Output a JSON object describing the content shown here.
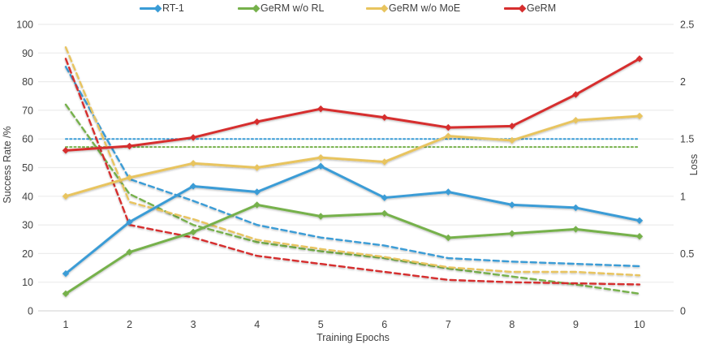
{
  "chart_data": {
    "type": "line",
    "xlabel": "Training Epochs",
    "x": [
      1,
      2,
      3,
      4,
      5,
      6,
      7,
      8,
      9,
      10
    ],
    "left_axis": {
      "label": "Success Rate /%",
      "range": [
        0,
        100
      ],
      "ticks": [
        0,
        10,
        20,
        30,
        40,
        50,
        60,
        70,
        80,
        90,
        100
      ]
    },
    "right_axis": {
      "label": "Loss",
      "range": [
        0,
        2.5
      ],
      "ticks": [
        0,
        0.5,
        1,
        1.5,
        2,
        2.5
      ]
    },
    "grid": "horizontal",
    "legend": {
      "position": "top",
      "items": [
        {
          "label": "RT-1",
          "color": "#3A9CD6"
        },
        {
          "label": "GeRM w/o RL",
          "color": "#76B14B"
        },
        {
          "label": "GeRM w/o MoE",
          "color": "#E8C45E"
        },
        {
          "label": "GeRM",
          "color": "#D62E2E"
        }
      ]
    },
    "series": [
      {
        "name": "RT-1 success rate",
        "axis": "left",
        "style": "solid",
        "color": "#3A9CD6",
        "values": [
          13,
          31,
          43.5,
          41.5,
          50.5,
          39.5,
          41.5,
          37,
          36,
          31.5
        ]
      },
      {
        "name": "GeRM w/o RL success rate",
        "axis": "left",
        "style": "solid",
        "color": "#76B14B",
        "values": [
          6,
          20.5,
          27.5,
          37,
          33,
          34,
          25.5,
          27,
          28.5,
          26
        ]
      },
      {
        "name": "GeRM w/o MoE success rate",
        "axis": "left",
        "style": "solid",
        "color": "#E8C45E",
        "values": [
          40,
          46.5,
          51.5,
          50,
          53.5,
          52,
          61,
          59.5,
          66.5,
          68
        ]
      },
      {
        "name": "GeRM success rate",
        "axis": "left",
        "style": "solid",
        "color": "#D62E2E",
        "values": [
          56,
          57.5,
          60.5,
          66,
          70.5,
          67.5,
          64,
          64.5,
          75.5,
          88
        ]
      },
      {
        "name": "RT-1 loss",
        "axis": "right",
        "style": "dashed",
        "color": "#3A9CD6",
        "values": [
          2.13,
          1.15,
          0.96,
          0.75,
          0.64,
          0.57,
          0.46,
          0.43,
          0.41,
          0.39
        ]
      },
      {
        "name": "GeRM w/o RL loss",
        "axis": "right",
        "style": "dashed",
        "color": "#76B14B",
        "values": [
          1.8,
          1.02,
          0.75,
          0.6,
          0.52,
          0.46,
          0.37,
          0.3,
          0.23,
          0.15
        ]
      },
      {
        "name": "GeRM w/o MoE loss",
        "axis": "right",
        "style": "dashed",
        "color": "#E8C45E",
        "values": [
          2.3,
          0.95,
          0.8,
          0.62,
          0.54,
          0.47,
          0.38,
          0.34,
          0.34,
          0.31
        ]
      },
      {
        "name": "GeRM loss",
        "axis": "right",
        "style": "dashed",
        "color": "#D62E2E",
        "values": [
          2.2,
          0.75,
          0.64,
          0.48,
          0.41,
          0.34,
          0.27,
          0.25,
          0.24,
          0.23
        ]
      }
    ],
    "reference_lines": [
      {
        "name": "RT-1 reference",
        "axis": "left",
        "value": 60,
        "style": "dotted",
        "color": "#3A9CD6"
      },
      {
        "name": "GeRM w/o RL reference",
        "axis": "left",
        "value": 57.2,
        "style": "dotted",
        "color": "#76B14B"
      }
    ],
    "colors": {
      "grid": "#ECECEC",
      "zero_line": "#D9D9D9",
      "text": "#404040",
      "background": "#FFFFFF"
    }
  }
}
